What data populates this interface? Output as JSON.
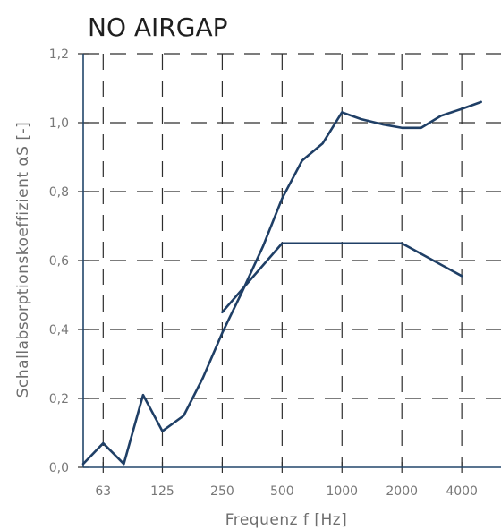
{
  "chart_data": {
    "type": "line",
    "title": "NO AIRGAP",
    "xlabel": "Frequenz f [Hz]",
    "ylabel": "Schallabsorptionskoeffizient αS [-]",
    "x_scale": "log",
    "x_ticks": [
      63,
      125,
      250,
      500,
      1000,
      2000,
      4000
    ],
    "x_tick_labels": [
      "63",
      "125",
      "250",
      "500",
      "1000",
      "2000",
      "4000"
    ],
    "xlim": [
      50,
      6300
    ],
    "ylim": [
      0,
      1.2
    ],
    "y_ticks": [
      0,
      0.2,
      0.4,
      0.6,
      0.8,
      1.0,
      1.2
    ],
    "y_tick_labels": [
      "0,0",
      "0,2",
      "0,4",
      "0,6",
      "0,8",
      "1,0",
      "1,2"
    ],
    "grid": true,
    "colors": {
      "series": "#1f3f66",
      "axis": "#22466b",
      "grid": "#2d2d2d"
    },
    "series": [
      {
        "x": [
          50,
          63,
          80,
          100,
          125,
          160,
          200,
          250,
          315,
          400,
          500,
          630,
          800,
          1000,
          1250,
          1600,
          2000,
          2500,
          3150,
          4000,
          5000
        ],
        "values": [
          0.01,
          0.07,
          0.01,
          0.21,
          0.105,
          0.15,
          0.26,
          0.39,
          0.51,
          0.64,
          0.78,
          0.89,
          0.94,
          1.03,
          1.01,
          0.995,
          0.985,
          0.985,
          1.02,
          1.04,
          1.06
        ]
      },
      {
        "x": [
          250,
          500,
          1000,
          2000,
          4000
        ],
        "values": [
          0.45,
          0.65,
          0.65,
          0.65,
          0.555
        ]
      }
    ]
  }
}
